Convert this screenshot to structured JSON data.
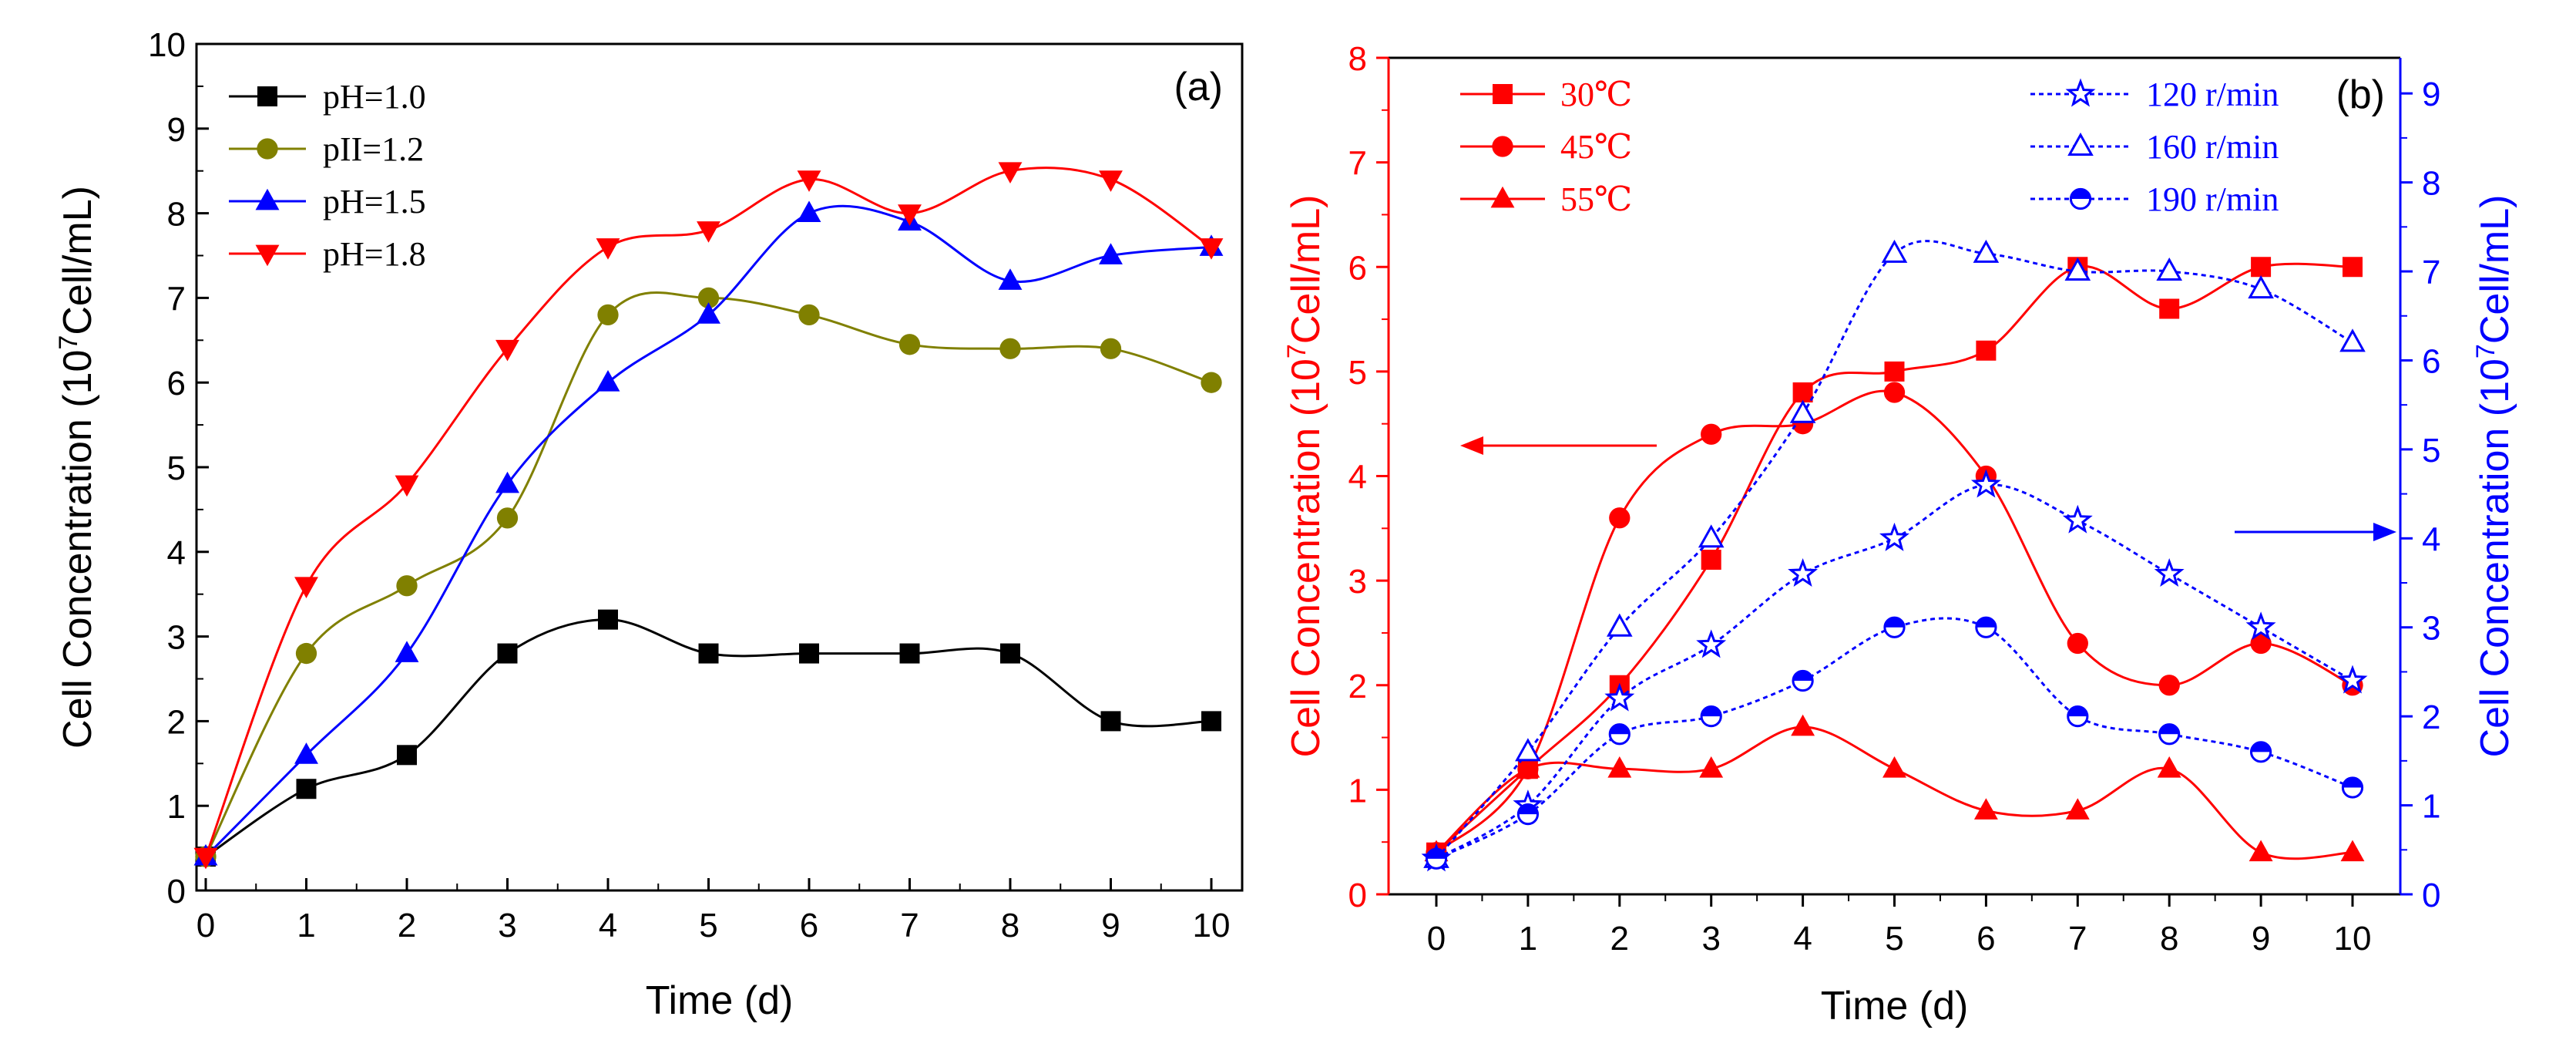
{
  "chart_data": [
    {
      "type": "line",
      "panel_label": "(a)",
      "xlabel": "Time (d)",
      "ylabel": "Cell Concentration (10",
      "ylabel_sup": "7",
      "ylabel_tail": "Cell/mL)",
      "xlim": [
        0,
        10
      ],
      "ylim": [
        0,
        10
      ],
      "x_ticks": [
        "0",
        "1",
        "2",
        "3",
        "4",
        "5",
        "6",
        "7",
        "8",
        "9",
        "10"
      ],
      "y_ticks": [
        "0",
        "1",
        "2",
        "3",
        "4",
        "5",
        "6",
        "7",
        "8",
        "9",
        "10"
      ],
      "legend_position": "top-left",
      "x": [
        0,
        1,
        2,
        3,
        4,
        5,
        6,
        7,
        8,
        9,
        10
      ],
      "series": [
        {
          "name": "pH=1.0",
          "color": "#000000",
          "marker": "square",
          "values": [
            0.4,
            1.2,
            1.6,
            2.8,
            3.2,
            2.8,
            2.8,
            2.8,
            2.8,
            2.0,
            2.0
          ]
        },
        {
          "name": "pII=1.2",
          "color": "#808000",
          "marker": "circle",
          "values": [
            0.4,
            2.8,
            3.6,
            4.4,
            6.8,
            7.0,
            6.8,
            6.45,
            6.4,
            6.4,
            6.0
          ]
        },
        {
          "name": "pH=1.5",
          "color": "#0000ff",
          "marker": "triangle-up",
          "values": [
            0.4,
            1.6,
            2.8,
            4.8,
            6.0,
            6.8,
            8.0,
            7.9,
            7.2,
            7.5,
            7.6
          ]
        },
        {
          "name": "pH=1.8",
          "color": "#ff0000",
          "marker": "triangle-down",
          "values": [
            0.4,
            3.6,
            4.8,
            6.4,
            7.6,
            7.8,
            8.4,
            8.0,
            8.5,
            8.4,
            7.6
          ]
        }
      ]
    },
    {
      "type": "line",
      "panel_label": "(b)",
      "xlabel": "Time (d)",
      "ylabel_left": "Cell Concentration (10",
      "ylabel_left_sup": "7",
      "ylabel_left_tail": "Cell/mL)",
      "ylabel_right": "Cell Concentration (10",
      "ylabel_right_sup": "7",
      "ylabel_right_tail": "Cell/mL)",
      "xlim": [
        0,
        10
      ],
      "ylim_left": [
        0,
        8
      ],
      "ylim_right": [
        0,
        9.4
      ],
      "x_ticks": [
        "0",
        "1",
        "2",
        "3",
        "4",
        "5",
        "6",
        "7",
        "8",
        "9",
        "10"
      ],
      "y_ticks_left": [
        "0",
        "1",
        "2",
        "3",
        "4",
        "5",
        "6",
        "7",
        "8"
      ],
      "y_ticks_right": [
        "0",
        "1",
        "2",
        "3",
        "4",
        "5",
        "6",
        "7",
        "8",
        "9"
      ],
      "left_axis_color": "#ff0000",
      "right_axis_color": "#0000ff",
      "legend_left_position": "top-left",
      "legend_right_position": "top-right",
      "x": [
        0,
        1,
        2,
        3,
        4,
        5,
        6,
        7,
        8,
        9,
        10
      ],
      "series_left": [
        {
          "name": "30℃",
          "color": "#ff0000",
          "marker": "square",
          "values": [
            0.4,
            1.2,
            2.0,
            3.2,
            4.8,
            5.0,
            5.2,
            6.0,
            5.6,
            6.0,
            6.0
          ]
        },
        {
          "name": "45℃",
          "color": "#ff0000",
          "marker": "circle",
          "values": [
            0.4,
            1.2,
            3.6,
            4.4,
            4.5,
            4.8,
            4.0,
            2.4,
            2.0,
            2.4,
            2.0
          ]
        },
        {
          "name": "55℃",
          "color": "#ff0000",
          "marker": "triangle-up",
          "values": [
            0.4,
            1.2,
            1.2,
            1.2,
            1.6,
            1.2,
            0.8,
            0.8,
            1.2,
            0.4,
            0.4
          ]
        }
      ],
      "series_right": [
        {
          "name": "120 r/min",
          "color": "#0000ff",
          "marker": "star",
          "values": [
            0.4,
            1.0,
            2.2,
            2.8,
            3.6,
            4.0,
            4.6,
            4.2,
            3.6,
            3.0,
            2.4
          ]
        },
        {
          "name": "160 r/min",
          "color": "#0000ff",
          "marker": "triangle-up-open",
          "values": [
            0.4,
            1.6,
            3.0,
            4.0,
            5.4,
            7.2,
            7.2,
            7.0,
            7.0,
            6.8,
            6.2
          ]
        },
        {
          "name": "190 r/min",
          "color": "#0000ff",
          "marker": "circle-half",
          "values": [
            0.4,
            0.9,
            1.8,
            2.0,
            2.4,
            3.0,
            3.0,
            2.0,
            1.8,
            1.6,
            1.2
          ]
        }
      ]
    }
  ]
}
